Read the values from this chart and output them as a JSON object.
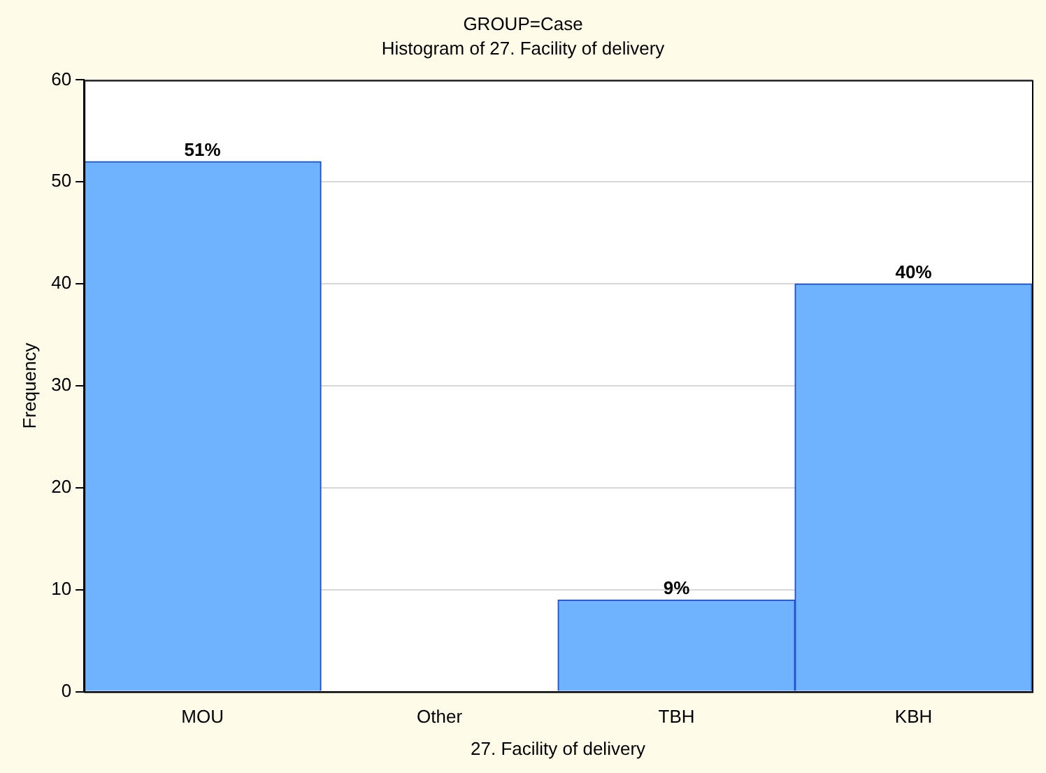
{
  "chart_data": {
    "type": "bar",
    "title": "GROUP=Case",
    "subtitle": "Histogram of 27. Facility of delivery",
    "xlabel": "27. Facility of delivery",
    "ylabel": "Frequency",
    "categories": [
      "MOU",
      "Other",
      "TBH",
      "KBH"
    ],
    "values": [
      52,
      0,
      9,
      40
    ],
    "color": "#6fb3ff",
    "annotations": [
      {
        "text": "51%",
        "x": "MOU",
        "y": 52
      },
      {
        "text": "9%",
        "x": "TBH",
        "y": 9
      },
      {
        "text": "40%",
        "x": "KBH",
        "y": 40
      }
    ],
    "ylim": [
      0,
      60
    ],
    "yticks": [
      0,
      10,
      20,
      30,
      40,
      50,
      60
    ],
    "grid": "y",
    "legend": false
  }
}
